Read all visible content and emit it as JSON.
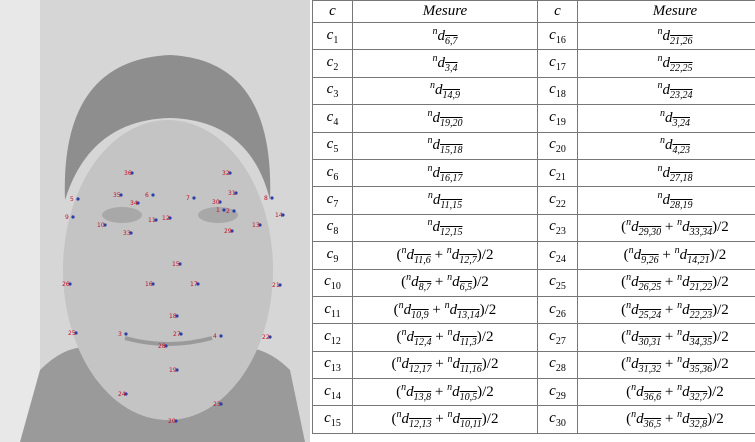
{
  "figure": {
    "landmarks": [
      "36",
      "35",
      "34",
      "6",
      "5",
      "9",
      "10",
      "33",
      "11",
      "32",
      "31",
      "30",
      "7",
      "2",
      "1",
      "12",
      "29",
      "13",
      "14",
      "8",
      "15",
      "16",
      "17",
      "26",
      "21",
      "18",
      "3",
      "27",
      "4",
      "22",
      "25",
      "28",
      "19",
      "24",
      "23",
      "20"
    ]
  },
  "table": {
    "header": [
      "c",
      "Mesure",
      "c",
      "Mesure"
    ],
    "rows": [
      [
        {
          "base": "c",
          "sub": "1"
        },
        [
          {
            "sup": "n",
            "base": "d",
            "sub": "6,7"
          }
        ],
        {
          "base": "c",
          "sub": "16"
        },
        [
          {
            "sup": "n",
            "base": "d",
            "sub": "21,26"
          }
        ]
      ],
      [
        {
          "base": "c",
          "sub": "2"
        },
        [
          {
            "sup": "n",
            "base": "d",
            "sub": "3,4"
          }
        ],
        {
          "base": "c",
          "sub": "17"
        },
        [
          {
            "sup": "n",
            "base": "d",
            "sub": "22,25"
          }
        ]
      ],
      [
        {
          "base": "c",
          "sub": "3"
        },
        [
          {
            "sup": "n",
            "base": "d",
            "sub": "14,9"
          }
        ],
        {
          "base": "c",
          "sub": "18"
        },
        [
          {
            "sup": "n",
            "base": "d",
            "sub": "23,24"
          }
        ]
      ],
      [
        {
          "base": "c",
          "sub": "4"
        },
        [
          {
            "sup": "n",
            "base": "d",
            "sub": "19,20"
          }
        ],
        {
          "base": "c",
          "sub": "19"
        },
        [
          {
            "sup": "n",
            "base": "d",
            "sub": "3,24"
          }
        ]
      ],
      [
        {
          "base": "c",
          "sub": "5"
        },
        [
          {
            "sup": "n",
            "base": "d",
            "sub": "15,18"
          }
        ],
        {
          "base": "c",
          "sub": "20"
        },
        [
          {
            "sup": "n",
            "base": "d",
            "sub": "4,23"
          }
        ]
      ],
      [
        {
          "base": "c",
          "sub": "6"
        },
        [
          {
            "sup": "n",
            "base": "d",
            "sub": "16,17"
          }
        ],
        {
          "base": "c",
          "sub": "21"
        },
        [
          {
            "sup": "n",
            "base": "d",
            "sub": "27,18"
          }
        ]
      ],
      [
        {
          "base": "c",
          "sub": "7"
        },
        [
          {
            "sup": "n",
            "base": "d",
            "sub": "11,15"
          }
        ],
        {
          "base": "c",
          "sub": "22"
        },
        [
          {
            "sup": "n",
            "base": "d",
            "sub": "28,19"
          }
        ]
      ],
      [
        {
          "base": "c",
          "sub": "8"
        },
        [
          {
            "sup": "n",
            "base": "d",
            "sub": "12,15"
          }
        ],
        {
          "base": "c",
          "sub": "23"
        },
        [
          {
            "text": "("
          },
          {
            "sup": "n",
            "base": "d",
            "sub": "29,30"
          },
          {
            "text": " + "
          },
          {
            "sup": "n",
            "base": "d",
            "sub": "33,34"
          },
          {
            "text": ")/2"
          }
        ]
      ],
      [
        {
          "base": "c",
          "sub": "9"
        },
        [
          {
            "text": "("
          },
          {
            "sup": "n",
            "base": "d",
            "sub": "11,6"
          },
          {
            "text": " + "
          },
          {
            "sup": "n",
            "base": "d",
            "sub": "12,7"
          },
          {
            "text": ")/2"
          }
        ],
        {
          "base": "c",
          "sub": "24"
        },
        [
          {
            "text": "("
          },
          {
            "sup": "n",
            "base": "d",
            "sub": "9,26"
          },
          {
            "text": " + "
          },
          {
            "sup": "n",
            "base": "d",
            "sub": "14,21"
          },
          {
            "text": ")/2"
          }
        ]
      ],
      [
        {
          "base": "c",
          "sub": "10"
        },
        [
          {
            "text": "("
          },
          {
            "sup": "n",
            "base": "d",
            "sub": "8,7"
          },
          {
            "text": " + "
          },
          {
            "sup": "n",
            "base": "d",
            "sub": "6,5"
          },
          {
            "text": ")/2"
          }
        ],
        {
          "base": "c",
          "sub": "25"
        },
        [
          {
            "text": "("
          },
          {
            "sup": "n",
            "base": "d",
            "sub": "26,25"
          },
          {
            "text": " + "
          },
          {
            "sup": "n",
            "base": "d",
            "sub": "21,22"
          },
          {
            "text": ")/2"
          }
        ]
      ],
      [
        {
          "base": "c",
          "sub": "11"
        },
        [
          {
            "text": "("
          },
          {
            "sup": "n",
            "base": "d",
            "sub": "10,9"
          },
          {
            "text": " + "
          },
          {
            "sup": "n",
            "base": "d",
            "sub": "13,14"
          },
          {
            "text": ")/2"
          }
        ],
        {
          "base": "c",
          "sub": "26"
        },
        [
          {
            "text": "("
          },
          {
            "sup": "n",
            "base": "d",
            "sub": "25,24"
          },
          {
            "text": " + "
          },
          {
            "sup": "n",
            "base": "d",
            "sub": "22,23"
          },
          {
            "text": ")/2"
          }
        ]
      ],
      [
        {
          "base": "c",
          "sub": "12"
        },
        [
          {
            "text": "("
          },
          {
            "sup": "n",
            "base": "d",
            "sub": "12,4"
          },
          {
            "text": " + "
          },
          {
            "sup": "n",
            "base": "d",
            "sub": "11,3"
          },
          {
            "text": ")/2"
          }
        ],
        {
          "base": "c",
          "sub": "27"
        },
        [
          {
            "text": "("
          },
          {
            "sup": "n",
            "base": "d",
            "sub": "30,31"
          },
          {
            "text": " + "
          },
          {
            "sup": "n",
            "base": "d",
            "sub": "34,35"
          },
          {
            "text": ")/2"
          }
        ]
      ],
      [
        {
          "base": "c",
          "sub": "13"
        },
        [
          {
            "text": "("
          },
          {
            "sup": "n",
            "base": "d",
            "sub": "12,17"
          },
          {
            "text": " + "
          },
          {
            "sup": "n",
            "base": "d",
            "sub": "11,16"
          },
          {
            "text": ")/2"
          }
        ],
        {
          "base": "c",
          "sub": "28"
        },
        [
          {
            "text": "("
          },
          {
            "sup": "n",
            "base": "d",
            "sub": "31,32"
          },
          {
            "text": " + "
          },
          {
            "sup": "n",
            "base": "d",
            "sub": "35,36"
          },
          {
            "text": ")/2"
          }
        ]
      ],
      [
        {
          "base": "c",
          "sub": "14"
        },
        [
          {
            "text": "("
          },
          {
            "sup": "n",
            "base": "d",
            "sub": "13,8"
          },
          {
            "text": " + "
          },
          {
            "sup": "n",
            "base": "d",
            "sub": "10,5"
          },
          {
            "text": ")/2"
          }
        ],
        {
          "base": "c",
          "sub": "29"
        },
        [
          {
            "text": "("
          },
          {
            "sup": "n",
            "base": "d",
            "sub": "36,6"
          },
          {
            "text": " + "
          },
          {
            "sup": "n",
            "base": "d",
            "sub": "32,7"
          },
          {
            "text": ")/2"
          }
        ]
      ],
      [
        {
          "base": "c",
          "sub": "15"
        },
        [
          {
            "text": "("
          },
          {
            "sup": "n",
            "base": "d",
            "sub": "12,13"
          },
          {
            "text": " + "
          },
          {
            "sup": "n",
            "base": "d",
            "sub": "10,11"
          },
          {
            "text": ")/2"
          }
        ],
        {
          "base": "c",
          "sub": "30"
        },
        [
          {
            "text": "("
          },
          {
            "sup": "n",
            "base": "d",
            "sub": "36,5"
          },
          {
            "text": " + "
          },
          {
            "sup": "n",
            "base": "d",
            "sub": "32,8"
          },
          {
            "text": ")/2"
          }
        ]
      ]
    ]
  }
}
